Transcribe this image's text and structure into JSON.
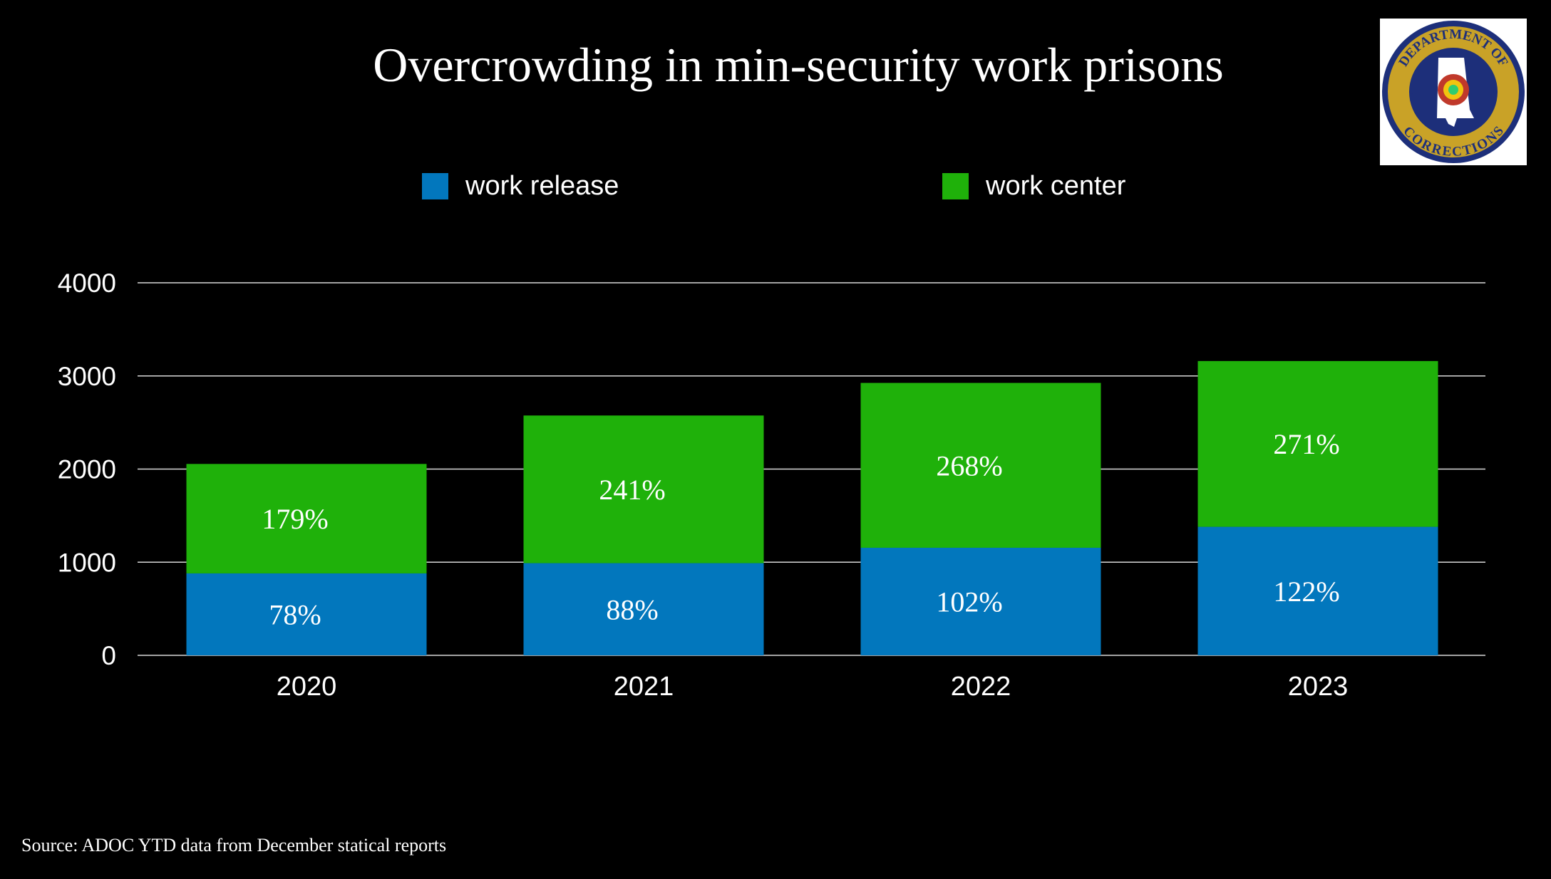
{
  "title": "Overcrowding in min-security work prisons",
  "source": "Source: ADOC YTD data from December statical reports",
  "logo": {
    "ring_text_top": "DEPARTMENT OF",
    "ring_text_bottom": "CORRECTIONS",
    "icon": "alabama-doc-seal-icon"
  },
  "colors": {
    "background": "#000000",
    "work_release": "#0277bd",
    "work_center": "#1fb10a",
    "text": "#ffffff"
  },
  "chart_data": {
    "type": "bar",
    "stacked": true,
    "categories": [
      "2020",
      "2021",
      "2022",
      "2023"
    ],
    "ylim": [
      0,
      4000
    ],
    "yticks": [
      0,
      1000,
      2000,
      3000,
      4000
    ],
    "grid": true,
    "legend_position": "top",
    "xlabel": "",
    "ylabel": "",
    "series": [
      {
        "name": "work release",
        "color": "#0277bd",
        "values": [
          880,
          990,
          1155,
          1380
        ],
        "labels": [
          "78%",
          "88%",
          "102%",
          "122%"
        ]
      },
      {
        "name": "work center",
        "color": "#1fb10a",
        "values": [
          1175,
          1585,
          1770,
          1780
        ],
        "labels": [
          "179%",
          "241%",
          "268%",
          "271%"
        ]
      }
    ]
  }
}
